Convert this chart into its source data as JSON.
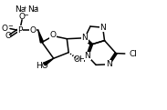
{
  "bg_color": "#ffffff",
  "line_color": "#000000",
  "lw": 1.1,
  "font_size": 6.5,
  "fig_width": 1.83,
  "fig_height": 1.21,
  "dpi": 100,
  "xlim": [
    0,
    9.5
  ],
  "ylim": [
    0,
    6.2
  ]
}
